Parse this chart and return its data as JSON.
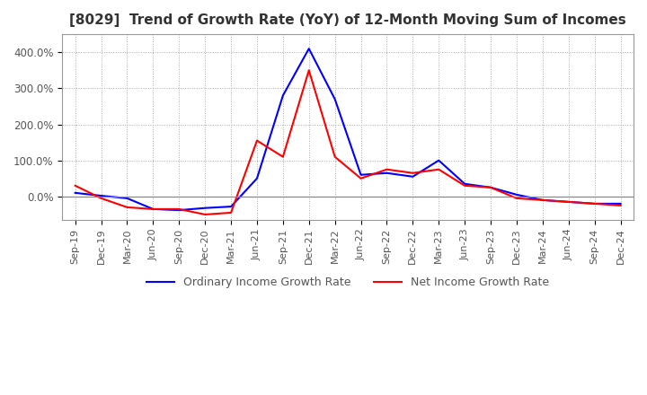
{
  "title": "[8029]  Trend of Growth Rate (YoY) of 12-Month Moving Sum of Incomes",
  "title_fontsize": 11,
  "x_labels": [
    "Sep-19",
    "Dec-19",
    "Mar-20",
    "Jun-20",
    "Sep-20",
    "Dec-20",
    "Mar-21",
    "Jun-21",
    "Sep-21",
    "Dec-21",
    "Mar-22",
    "Jun-22",
    "Sep-22",
    "Dec-22",
    "Mar-23",
    "Jun-23",
    "Sep-23",
    "Dec-23",
    "Mar-24",
    "Jun-24",
    "Sep-24",
    "Dec-24"
  ],
  "ordinary_income": [
    10,
    2,
    -5,
    -35,
    -38,
    -32,
    -28,
    50,
    280,
    410,
    270,
    60,
    65,
    55,
    100,
    35,
    25,
    5,
    -10,
    -15,
    -20,
    -20
  ],
  "net_income": [
    30,
    -5,
    -30,
    -35,
    -35,
    -50,
    -45,
    155,
    110,
    350,
    110,
    50,
    75,
    65,
    75,
    30,
    25,
    -5,
    -10,
    -15,
    -20,
    -25
  ],
  "ordinary_color": "#0000FF",
  "net_color": "#FF0000",
  "ylim_min": -65,
  "ylim_max": 450,
  "yticks": [
    0,
    100,
    200,
    300,
    400
  ],
  "ytick_labels": [
    "0.0%",
    "100.0%",
    "200.0%",
    "300.0%",
    "400.0%"
  ],
  "background_color": "#FFFFFF",
  "grid_color": "#AAAAAA",
  "legend_ordinary": "Ordinary Income Growth Rate",
  "legend_net": "Net Income Growth Rate"
}
